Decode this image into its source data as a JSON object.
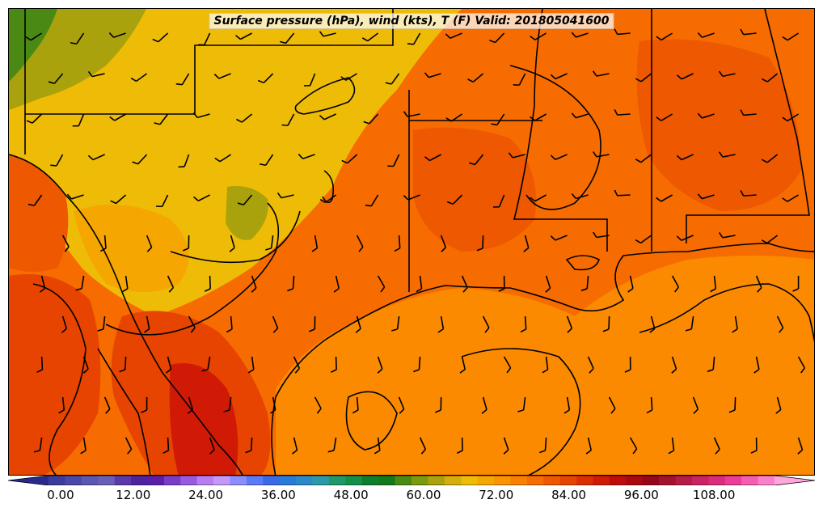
{
  "title": "Surface pressure (hPa), wind (kts), T (F) Valid: 201805041600",
  "colorbar": {
    "ticks": [
      "0.00",
      "12.00",
      "24.00",
      "36.00",
      "48.00",
      "60.00",
      "72.00",
      "84.00",
      "96.00",
      "108.00"
    ],
    "tick_values": [
      0,
      12,
      24,
      36,
      48,
      60,
      72,
      84,
      96,
      108
    ],
    "min": -2,
    "max": 118,
    "colors": [
      "#2a2a8c",
      "#3b3b9e",
      "#4a48a8",
      "#5b58b2",
      "#6a5fb6",
      "#5a3aa8",
      "#4f22a0",
      "#5a1ea8",
      "#7a3cc8",
      "#9a5ae0",
      "#b87cf0",
      "#c598f8",
      "#8c8cff",
      "#5a7af8",
      "#3a6ae8",
      "#2a7ad8",
      "#2a8ac8",
      "#2a9aa8",
      "#1e9a6a",
      "#169048",
      "#0e7e2e",
      "#127a1a",
      "#4a8a14",
      "#7a9a10",
      "#aaa20c",
      "#d4ae0a",
      "#eebc06",
      "#f6a600",
      "#fb9400",
      "#fb8000",
      "#f66c00",
      "#ee5800",
      "#e64400",
      "#dc2e00",
      "#d01a06",
      "#be0c0c",
      "#aa0810",
      "#96061a",
      "#a2122e",
      "#b61a48",
      "#ca2262",
      "#dc2a7c",
      "#ec3c98",
      "#f65cb2",
      "#fb80c8",
      "#ffa6dc"
    ]
  }
}
